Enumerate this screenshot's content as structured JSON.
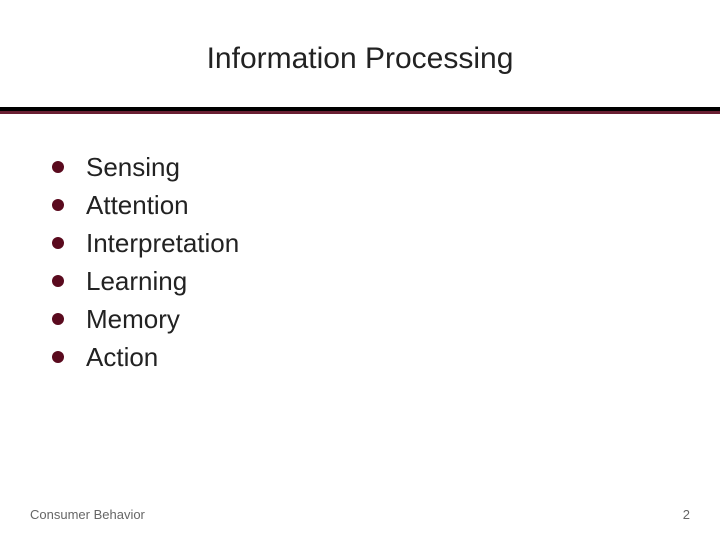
{
  "title": {
    "text": "Information Processing",
    "fontsize": 30,
    "color": "#222222"
  },
  "divider": {
    "black_color": "#000000",
    "maroon_color": "#6a1f33"
  },
  "bullets": {
    "color": "#5a0a1e",
    "size": 12,
    "items": [
      {
        "label": "Sensing"
      },
      {
        "label": "Attention"
      },
      {
        "label": "Interpretation"
      },
      {
        "label": "Learning"
      },
      {
        "label": "Memory"
      },
      {
        "label": "Action"
      }
    ],
    "fontsize": 26,
    "line_height": 38
  },
  "footer": {
    "left_text": "Consumer Behavior",
    "right_text": "2",
    "fontsize": 13,
    "color": "#666666"
  },
  "background_color": "#ffffff"
}
